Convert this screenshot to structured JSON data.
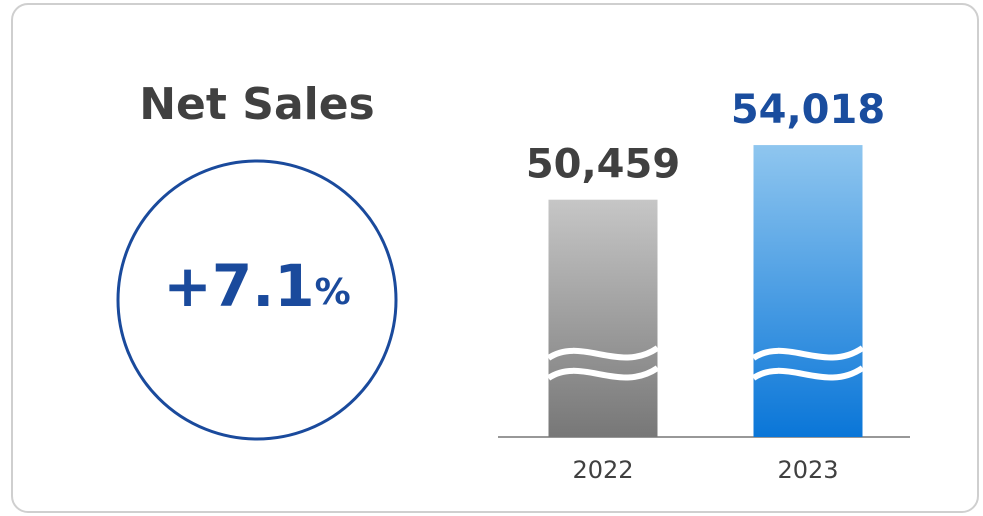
{
  "chart_data": {
    "type": "bar",
    "title": "Net Sales",
    "badge": {
      "value": "+7.1",
      "unit": "%"
    },
    "categories": [
      "2022",
      "2023"
    ],
    "values": [
      50459,
      54018
    ],
    "value_labels": [
      "50,459",
      "54,018"
    ],
    "ylim": [
      35000,
      55000
    ],
    "axis_break": true,
    "bar_colors": [
      {
        "top": "#c6c6c6",
        "bottom": "#777777"
      },
      {
        "top": "#8fc6ef",
        "bottom": "#0a76d8"
      }
    ],
    "label_colors": [
      "#404040",
      "#1a4d9e"
    ]
  }
}
